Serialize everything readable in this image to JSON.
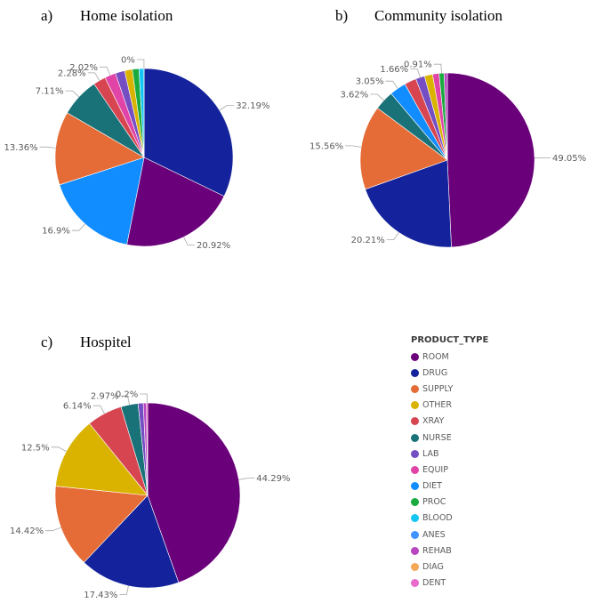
{
  "colors": {
    "ROOM": "#6b007b",
    "DRUG": "#14239b",
    "SUPPLY": "#e66c37",
    "OTHER": "#d9b300",
    "XRAY": "#d64550",
    "NURSE": "#197278",
    "LAB": "#744ec2",
    "EQUIP": "#e044a7",
    "DIET": "#118dff",
    "PROC": "#1aab40",
    "BLOOD": "#15c6f4",
    "ANES": "#4092ff",
    "REHAB": "#b845c1",
    "DIAG": "#f5a857",
    "DENT": "#e86bcd"
  },
  "legend": {
    "title": "PRODUCT_TYPE",
    "items": [
      "ROOM",
      "DRUG",
      "SUPPLY",
      "OTHER",
      "XRAY",
      "NURSE",
      "LAB",
      "EQUIP",
      "DIET",
      "PROC",
      "BLOOD",
      "ANES",
      "REHAB",
      "DIAG",
      "DENT"
    ]
  },
  "chart_data": [
    {
      "type": "pie",
      "letter": "a)",
      "title": "Home isolation",
      "slices": [
        {
          "category": "DRUG",
          "value": 32.19,
          "label": "32.19%"
        },
        {
          "category": "ROOM",
          "value": 20.92,
          "label": "20.92%"
        },
        {
          "category": "DIET",
          "value": 16.9,
          "label": "16.9%"
        },
        {
          "category": "SUPPLY",
          "value": 13.36,
          "label": "13.36%"
        },
        {
          "category": "NURSE",
          "value": 7.11,
          "label": "7.11%"
        },
        {
          "category": "XRAY",
          "value": 2.28,
          "label": "2.28%"
        },
        {
          "category": "EQUIP",
          "value": 2.02,
          "label": "2.02%"
        },
        {
          "category": "LAB",
          "value": 1.7,
          "label": ""
        },
        {
          "category": "OTHER",
          "value": 1.4,
          "label": ""
        },
        {
          "category": "PROC",
          "value": 1.2,
          "label": ""
        },
        {
          "category": "BLOOD",
          "value": 0.9,
          "label": ""
        },
        {
          "category": "DENT",
          "value": 0.02,
          "label": "0%"
        }
      ]
    },
    {
      "type": "pie",
      "letter": "b)",
      "title": "Community isolation",
      "slices": [
        {
          "category": "ROOM",
          "value": 49.05,
          "label": "49.05%"
        },
        {
          "category": "DRUG",
          "value": 20.21,
          "label": "20.21%"
        },
        {
          "category": "SUPPLY",
          "value": 15.56,
          "label": "15.56%"
        },
        {
          "category": "NURSE",
          "value": 3.62,
          "label": "3.62%"
        },
        {
          "category": "DIET",
          "value": 3.05,
          "label": "3.05%"
        },
        {
          "category": "XRAY",
          "value": 2.2,
          "label": ""
        },
        {
          "category": "LAB",
          "value": 1.66,
          "label": "1.66%"
        },
        {
          "category": "OTHER",
          "value": 1.5,
          "label": ""
        },
        {
          "category": "EQUIP",
          "value": 1.2,
          "label": ""
        },
        {
          "category": "PROC",
          "value": 0.91,
          "label": "0.91%"
        },
        {
          "category": "REHAB",
          "value": 0.6,
          "label": ""
        }
      ]
    },
    {
      "type": "pie",
      "letter": "c)",
      "title": "Hospitel",
      "slices": [
        {
          "category": "ROOM",
          "value": 44.29,
          "label": "44.29%"
        },
        {
          "category": "DRUG",
          "value": 17.43,
          "label": "17.43%"
        },
        {
          "category": "SUPPLY",
          "value": 14.42,
          "label": "14.42%"
        },
        {
          "category": "OTHER",
          "value": 12.5,
          "label": "12.5%"
        },
        {
          "category": "XRAY",
          "value": 6.14,
          "label": "6.14%"
        },
        {
          "category": "NURSE",
          "value": 2.97,
          "label": "2.97%"
        },
        {
          "category": "LAB",
          "value": 0.9,
          "label": ""
        },
        {
          "category": "REHAB",
          "value": 0.55,
          "label": ""
        },
        {
          "category": "EQUIP",
          "value": 0.2,
          "label": "0.2%"
        }
      ]
    }
  ]
}
